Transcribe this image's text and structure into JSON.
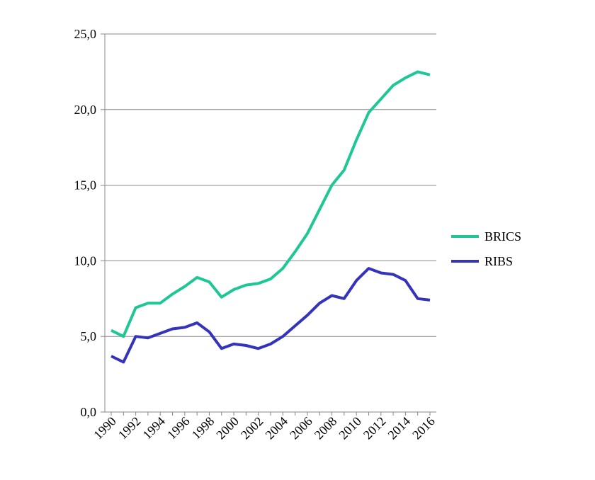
{
  "colors": {
    "BRICS": "#1fc796",
    "RIBS": "#3333bb",
    "grid": "#888888",
    "axis": "#888888"
  },
  "chart_data": {
    "type": "line",
    "title": "",
    "xlabel": "",
    "ylabel": "",
    "ylim": [
      0,
      25
    ],
    "xlim": [
      1990,
      2016
    ],
    "yticks": [
      0,
      5,
      10,
      15,
      20,
      25
    ],
    "ytick_labels": [
      "0,0",
      "5,0",
      "10,0",
      "15,0",
      "20,0",
      "25,0"
    ],
    "xtick_labels": [
      "1990",
      "1992",
      "1994",
      "1996",
      "1998",
      "2000",
      "2002",
      "2004",
      "2006",
      "2008",
      "2010",
      "2012",
      "2014",
      "2016"
    ],
    "grid": "horizontal",
    "legend_position": "right",
    "x": [
      1990,
      1991,
      1992,
      1993,
      1994,
      1995,
      1996,
      1997,
      1998,
      1999,
      2000,
      2001,
      2002,
      2003,
      2004,
      2005,
      2006,
      2007,
      2008,
      2009,
      2010,
      2011,
      2012,
      2013,
      2014,
      2015,
      2016
    ],
    "series": [
      {
        "name": "BRICS",
        "values": [
          5.4,
          5.0,
          6.9,
          7.2,
          7.2,
          7.8,
          8.3,
          8.9,
          8.6,
          7.6,
          8.1,
          8.4,
          8.5,
          8.8,
          9.5,
          10.6,
          11.8,
          13.4,
          15.0,
          16.0,
          18.0,
          19.8,
          20.7,
          21.6,
          22.1,
          22.5,
          22.3
        ]
      },
      {
        "name": "RIBS",
        "values": [
          3.7,
          3.3,
          5.0,
          4.9,
          5.2,
          5.5,
          5.6,
          5.9,
          5.3,
          4.2,
          4.5,
          4.4,
          4.2,
          4.5,
          5.0,
          5.7,
          6.4,
          7.2,
          7.7,
          7.5,
          8.7,
          9.5,
          9.2,
          9.1,
          8.7,
          7.5,
          7.4
        ]
      }
    ]
  }
}
